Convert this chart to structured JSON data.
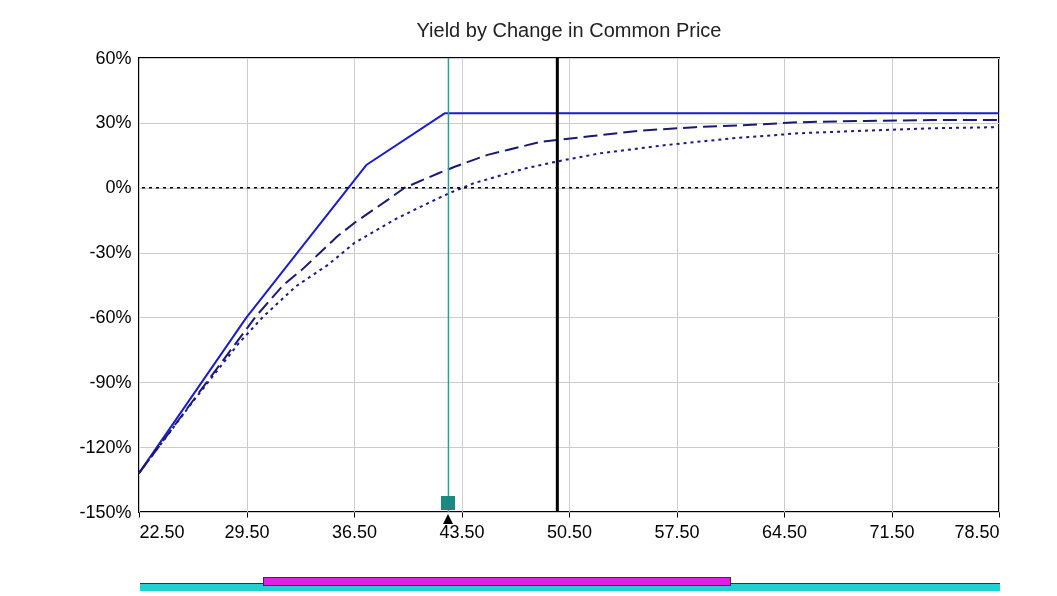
{
  "chart_data": {
    "type": "line",
    "title": "Yield by Change in Common Price",
    "xlim": [
      22.5,
      78.5
    ],
    "ylim": [
      -150,
      60
    ],
    "xticks": [
      {
        "value": 22.5,
        "label": "22.50"
      },
      {
        "value": 29.5,
        "label": "29.50"
      },
      {
        "value": 36.5,
        "label": "36.50"
      },
      {
        "value": 43.5,
        "label": "43.50"
      },
      {
        "value": 50.5,
        "label": "50.50"
      },
      {
        "value": 57.5,
        "label": "57.50"
      },
      {
        "value": 64.5,
        "label": "64.50"
      },
      {
        "value": 71.5,
        "label": "71.50"
      },
      {
        "value": 78.5,
        "label": "78.50"
      }
    ],
    "yticks": [
      {
        "value": -150,
        "label": "-150%"
      },
      {
        "value": -120,
        "label": "-120%"
      },
      {
        "value": -90,
        "label": "-90%"
      },
      {
        "value": -60,
        "label": "-60%"
      },
      {
        "value": -30,
        "label": "-30%"
      },
      {
        "value": 0,
        "label": "0%"
      },
      {
        "value": 30,
        "label": "30%"
      },
      {
        "value": 60,
        "label": "60%"
      }
    ],
    "grid": true,
    "series": [
      {
        "color": "#1c1cc8",
        "line_style": "solid",
        "x": [
          22.5,
          29.5,
          37.3,
          42.4,
          78.5
        ],
        "values": [
          -132,
          -60,
          10.5,
          34.4,
          34.4
        ]
      },
      {
        "color": "#1a1a70",
        "line_style": "dashed",
        "x": [
          22.5,
          30.1,
          31.9,
          33.1,
          35.4,
          36.5,
          38.7,
          39.8,
          42.0,
          43.1,
          45.2,
          48.7,
          49.7,
          52.0,
          55.2,
          58.7,
          62.1,
          65.5,
          69.8,
          74.1,
          78.5
        ],
        "values": [
          -132,
          -59.6,
          -45,
          -38,
          -22.6,
          -16.4,
          -5.6,
          0,
          6.7,
          9.8,
          15.2,
          21.3,
          22.1,
          23.9,
          26.4,
          28,
          29,
          30.3,
          30.9,
          31.3,
          31.3
        ]
      },
      {
        "color": "#1a1a80",
        "line_style": "dotted",
        "x": [
          22.5,
          26,
          29,
          30.5,
          32.7,
          34.8,
          36.5,
          39.1,
          41.3,
          42.7,
          44.3,
          47.7,
          49.7,
          52.6,
          56.9,
          61.2,
          65.5,
          69.8,
          74.1,
          78.5
        ],
        "values": [
          -132,
          -99,
          -71.9,
          -60.3,
          -45.7,
          -35.7,
          -25.7,
          -14.9,
          -7.2,
          -2.5,
          2.1,
          9,
          12.1,
          16,
          19.8,
          22.9,
          25.2,
          26.4,
          27.5,
          28
        ]
      }
    ],
    "ref_lines": [
      {
        "axis": "y",
        "value": 0,
        "color": "#000000",
        "line_style": "dotted"
      },
      {
        "axis": "x",
        "value": 42.65,
        "color": "#2a9d9d",
        "line_style": "solid"
      },
      {
        "axis": "x",
        "value": 49.74,
        "color": "#000000",
        "line_style": "solid"
      }
    ]
  }
}
